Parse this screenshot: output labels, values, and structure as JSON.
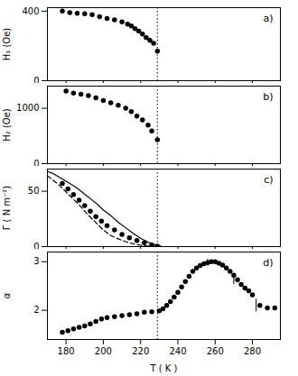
{
  "chart_data": [
    {
      "type": "scatter",
      "ylabel": "H₁ (Oe)",
      "annotations": [
        "a)"
      ],
      "xlim": [
        170,
        295
      ],
      "xticks": [
        180,
        200,
        220,
        240,
        260,
        280
      ],
      "tick_labels": "y",
      "ylim": [
        0,
        420
      ],
      "yticks": [
        0,
        400
      ],
      "vlines": [
        229
      ],
      "series": [
        {
          "type": "scatter",
          "marker": "circle",
          "color": "black",
          "x": [
            178,
            182,
            186,
            190,
            194,
            198,
            202,
            206,
            210,
            213,
            215,
            217,
            219,
            221,
            223,
            225,
            227,
            229
          ],
          "values": [
            400,
            392,
            388,
            385,
            380,
            368,
            358,
            350,
            338,
            325,
            315,
            300,
            285,
            268,
            248,
            232,
            215,
            170
          ]
        }
      ]
    },
    {
      "type": "scatter",
      "ylabel": "H₂ (Oe)",
      "annotations": [
        "b)"
      ],
      "xlim": [
        170,
        295
      ],
      "xticks": [
        180,
        200,
        220,
        240,
        260,
        280
      ],
      "tick_labels": "y",
      "ylim": [
        0,
        1400
      ],
      "yticks": [
        0,
        1000
      ],
      "vlines": [
        229
      ],
      "series": [
        {
          "type": "scatter",
          "marker": "circle",
          "color": "black",
          "x": [
            180,
            184,
            188,
            192,
            196,
            200,
            204,
            208,
            212,
            215,
            218,
            221,
            224,
            226,
            229
          ],
          "values": [
            1310,
            1275,
            1255,
            1230,
            1190,
            1140,
            1100,
            1055,
            1000,
            940,
            860,
            790,
            695,
            590,
            430
          ]
        }
      ]
    },
    {
      "type": "line",
      "ylabel": "Γ ( N m⁻²)",
      "annotations": [
        "c)"
      ],
      "xlim": [
        170,
        295
      ],
      "xticks": [
        180,
        200,
        220,
        240,
        260,
        280
      ],
      "tick_labels": "y",
      "ylim": [
        0,
        70
      ],
      "yticks": [
        0,
        50
      ],
      "vlines": [
        229
      ],
      "series": [
        {
          "type": "line",
          "line_style": "solid",
          "color": "black",
          "x": [
            170,
            173,
            176,
            179,
            182,
            185,
            188,
            191,
            194,
            197,
            200,
            204,
            208,
            212,
            216,
            220,
            224,
            228,
            231
          ],
          "values": [
            68,
            66,
            63,
            60,
            57,
            54,
            50,
            46,
            42,
            38,
            33,
            28,
            22,
            17,
            12,
            7.5,
            4,
            1.5,
            0.3
          ]
        },
        {
          "type": "line",
          "line_style": "dashed",
          "color": "black",
          "x": [
            170,
            173,
            176,
            179,
            182,
            185,
            188,
            191,
            194,
            197,
            200,
            204,
            208,
            212,
            216,
            220,
            224,
            228,
            231
          ],
          "values": [
            64,
            60,
            56,
            51,
            46,
            41,
            36,
            30,
            25,
            20,
            15,
            10,
            7,
            4.5,
            2.5,
            1.2,
            0.5,
            0.1,
            0.0
          ]
        },
        {
          "type": "scatter",
          "marker": "circle",
          "color": "black",
          "x": [
            178,
            181,
            184,
            187,
            190,
            193,
            196,
            199,
            202,
            206,
            210,
            214,
            218,
            222,
            226,
            229
          ],
          "values": [
            57,
            52,
            47,
            42,
            37,
            32,
            27,
            23,
            19,
            15,
            11,
            8,
            5.5,
            3.5,
            1.5,
            0.5
          ]
        }
      ]
    },
    {
      "type": "scatter",
      "ylabel": "α",
      "xlabel": "T ( K )",
      "annotations": [
        "d)"
      ],
      "xlim": [
        170,
        295
      ],
      "xticks": [
        180,
        200,
        220,
        240,
        260,
        280
      ],
      "ylim": [
        1.4,
        3.2
      ],
      "yticks": [
        2,
        3
      ],
      "vlines": [
        229
      ],
      "series": [
        {
          "type": "scatter",
          "marker": "circle",
          "color": "black",
          "x": [
            178,
            181,
            184,
            187,
            190,
            193,
            196,
            199,
            202,
            206,
            210,
            214,
            218,
            222,
            226,
            230,
            232,
            234,
            236,
            238,
            240,
            242,
            244,
            246,
            248,
            250,
            252,
            254,
            256,
            258,
            260,
            262,
            264,
            266,
            268,
            270,
            272,
            274,
            276,
            278,
            280,
            284,
            288,
            292
          ],
          "values": [
            1.55,
            1.58,
            1.62,
            1.65,
            1.68,
            1.72,
            1.77,
            1.82,
            1.85,
            1.87,
            1.89,
            1.91,
            1.93,
            1.96,
            1.97,
            1.99,
            2.03,
            2.1,
            2.18,
            2.27,
            2.37,
            2.48,
            2.59,
            2.7,
            2.8,
            2.87,
            2.92,
            2.96,
            2.98,
            3.0,
            3.0,
            2.97,
            2.93,
            2.87,
            2.8,
            2.72,
            2.63,
            2.53,
            2.46,
            2.4,
            2.32,
            2.1,
            2.05,
            2.05
          ]
        },
        {
          "type": "errorbar",
          "color": "black",
          "x": [
            256,
            270,
            282
          ],
          "values": [
            2.98,
            2.63,
            2.1
          ],
          "errors": [
            0.07,
            0.1,
            0.13
          ]
        }
      ]
    }
  ]
}
